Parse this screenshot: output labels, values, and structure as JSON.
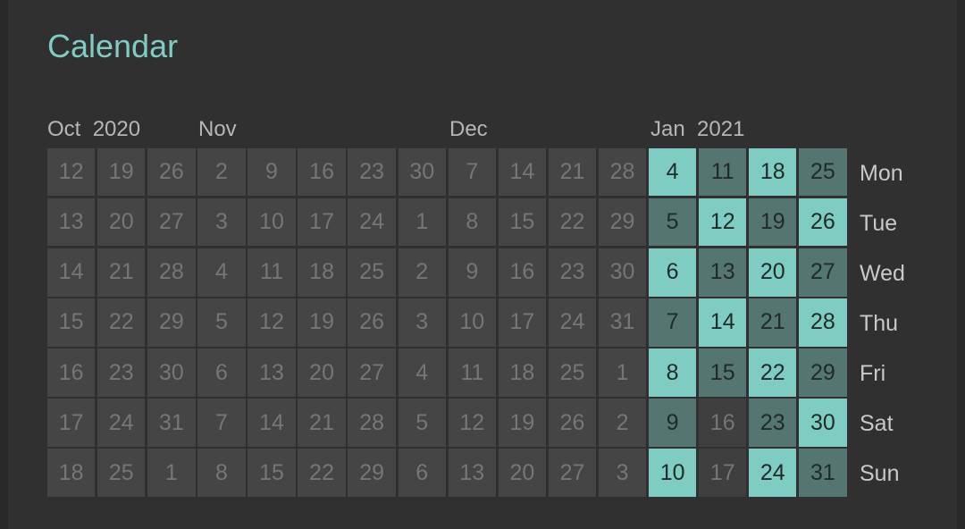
{
  "title": "Calendar",
  "months": [
    {
      "name": "Oct",
      "year": "2020"
    },
    {
      "name": "Nov",
      "year": ""
    },
    {
      "name": "Dec",
      "year": ""
    },
    {
      "name": "Jan",
      "year": "2021"
    }
  ],
  "weekdays": [
    "Mon",
    "Tue",
    "Wed",
    "Thu",
    "Fri",
    "Sat",
    "Sun"
  ],
  "weeks": [
    {
      "days": [
        12,
        13,
        14,
        15,
        16,
        17,
        18
      ],
      "status": [
        "past",
        "past",
        "past",
        "past",
        "past",
        "past",
        "past"
      ]
    },
    {
      "days": [
        19,
        20,
        21,
        22,
        23,
        24,
        25
      ],
      "status": [
        "past",
        "past",
        "past",
        "past",
        "past",
        "past",
        "past"
      ]
    },
    {
      "days": [
        26,
        27,
        28,
        29,
        30,
        31,
        1
      ],
      "status": [
        "past",
        "past",
        "past",
        "past",
        "past",
        "past",
        "past"
      ]
    },
    {
      "days": [
        2,
        3,
        4,
        5,
        6,
        7,
        8
      ],
      "status": [
        "past",
        "past",
        "past",
        "past",
        "past",
        "past",
        "past"
      ]
    },
    {
      "days": [
        9,
        10,
        11,
        12,
        13,
        14,
        15
      ],
      "status": [
        "past",
        "past",
        "past",
        "past",
        "past",
        "past",
        "past"
      ]
    },
    {
      "days": [
        16,
        17,
        18,
        19,
        20,
        21,
        22
      ],
      "status": [
        "past",
        "past",
        "past",
        "past",
        "past",
        "past",
        "past"
      ]
    },
    {
      "days": [
        23,
        24,
        25,
        26,
        27,
        28,
        29
      ],
      "status": [
        "past",
        "past",
        "past",
        "past",
        "past",
        "past",
        "past"
      ]
    },
    {
      "days": [
        30,
        1,
        2,
        3,
        4,
        5,
        6
      ],
      "status": [
        "past",
        "past",
        "past",
        "past",
        "past",
        "past",
        "past"
      ]
    },
    {
      "days": [
        7,
        8,
        9,
        10,
        11,
        12,
        13
      ],
      "status": [
        "past",
        "past",
        "past",
        "past",
        "past",
        "past",
        "past"
      ]
    },
    {
      "days": [
        14,
        15,
        16,
        17,
        18,
        19,
        20
      ],
      "status": [
        "past",
        "past",
        "past",
        "past",
        "past",
        "past",
        "past"
      ]
    },
    {
      "days": [
        21,
        22,
        23,
        24,
        25,
        26,
        27
      ],
      "status": [
        "past",
        "past",
        "past",
        "past",
        "past",
        "past",
        "past"
      ]
    },
    {
      "days": [
        28,
        29,
        30,
        31,
        1,
        2,
        3
      ],
      "status": [
        "past",
        "past",
        "past",
        "past",
        "past",
        "past",
        "past"
      ]
    },
    {
      "days": [
        4,
        5,
        6,
        7,
        8,
        9,
        10
      ],
      "status": [
        "light",
        "dark",
        "light",
        "dark",
        "light",
        "dark",
        "light"
      ]
    },
    {
      "days": [
        11,
        12,
        13,
        14,
        15,
        16,
        17
      ],
      "status": [
        "dark",
        "light",
        "dark",
        "light",
        "dark",
        "empty",
        "empty"
      ]
    },
    {
      "days": [
        18,
        19,
        20,
        21,
        22,
        23,
        24
      ],
      "status": [
        "light",
        "dark",
        "light",
        "dark",
        "light",
        "dark",
        "light"
      ]
    },
    {
      "days": [
        25,
        26,
        27,
        28,
        29,
        30,
        31
      ],
      "status": [
        "dark",
        "light",
        "dark",
        "light",
        "dark",
        "light",
        "dark"
      ]
    }
  ],
  "colors": {
    "accent": "#7fcdc2",
    "accent_dark": "#547570",
    "past_cell": "#454545",
    "background": "#303030"
  }
}
